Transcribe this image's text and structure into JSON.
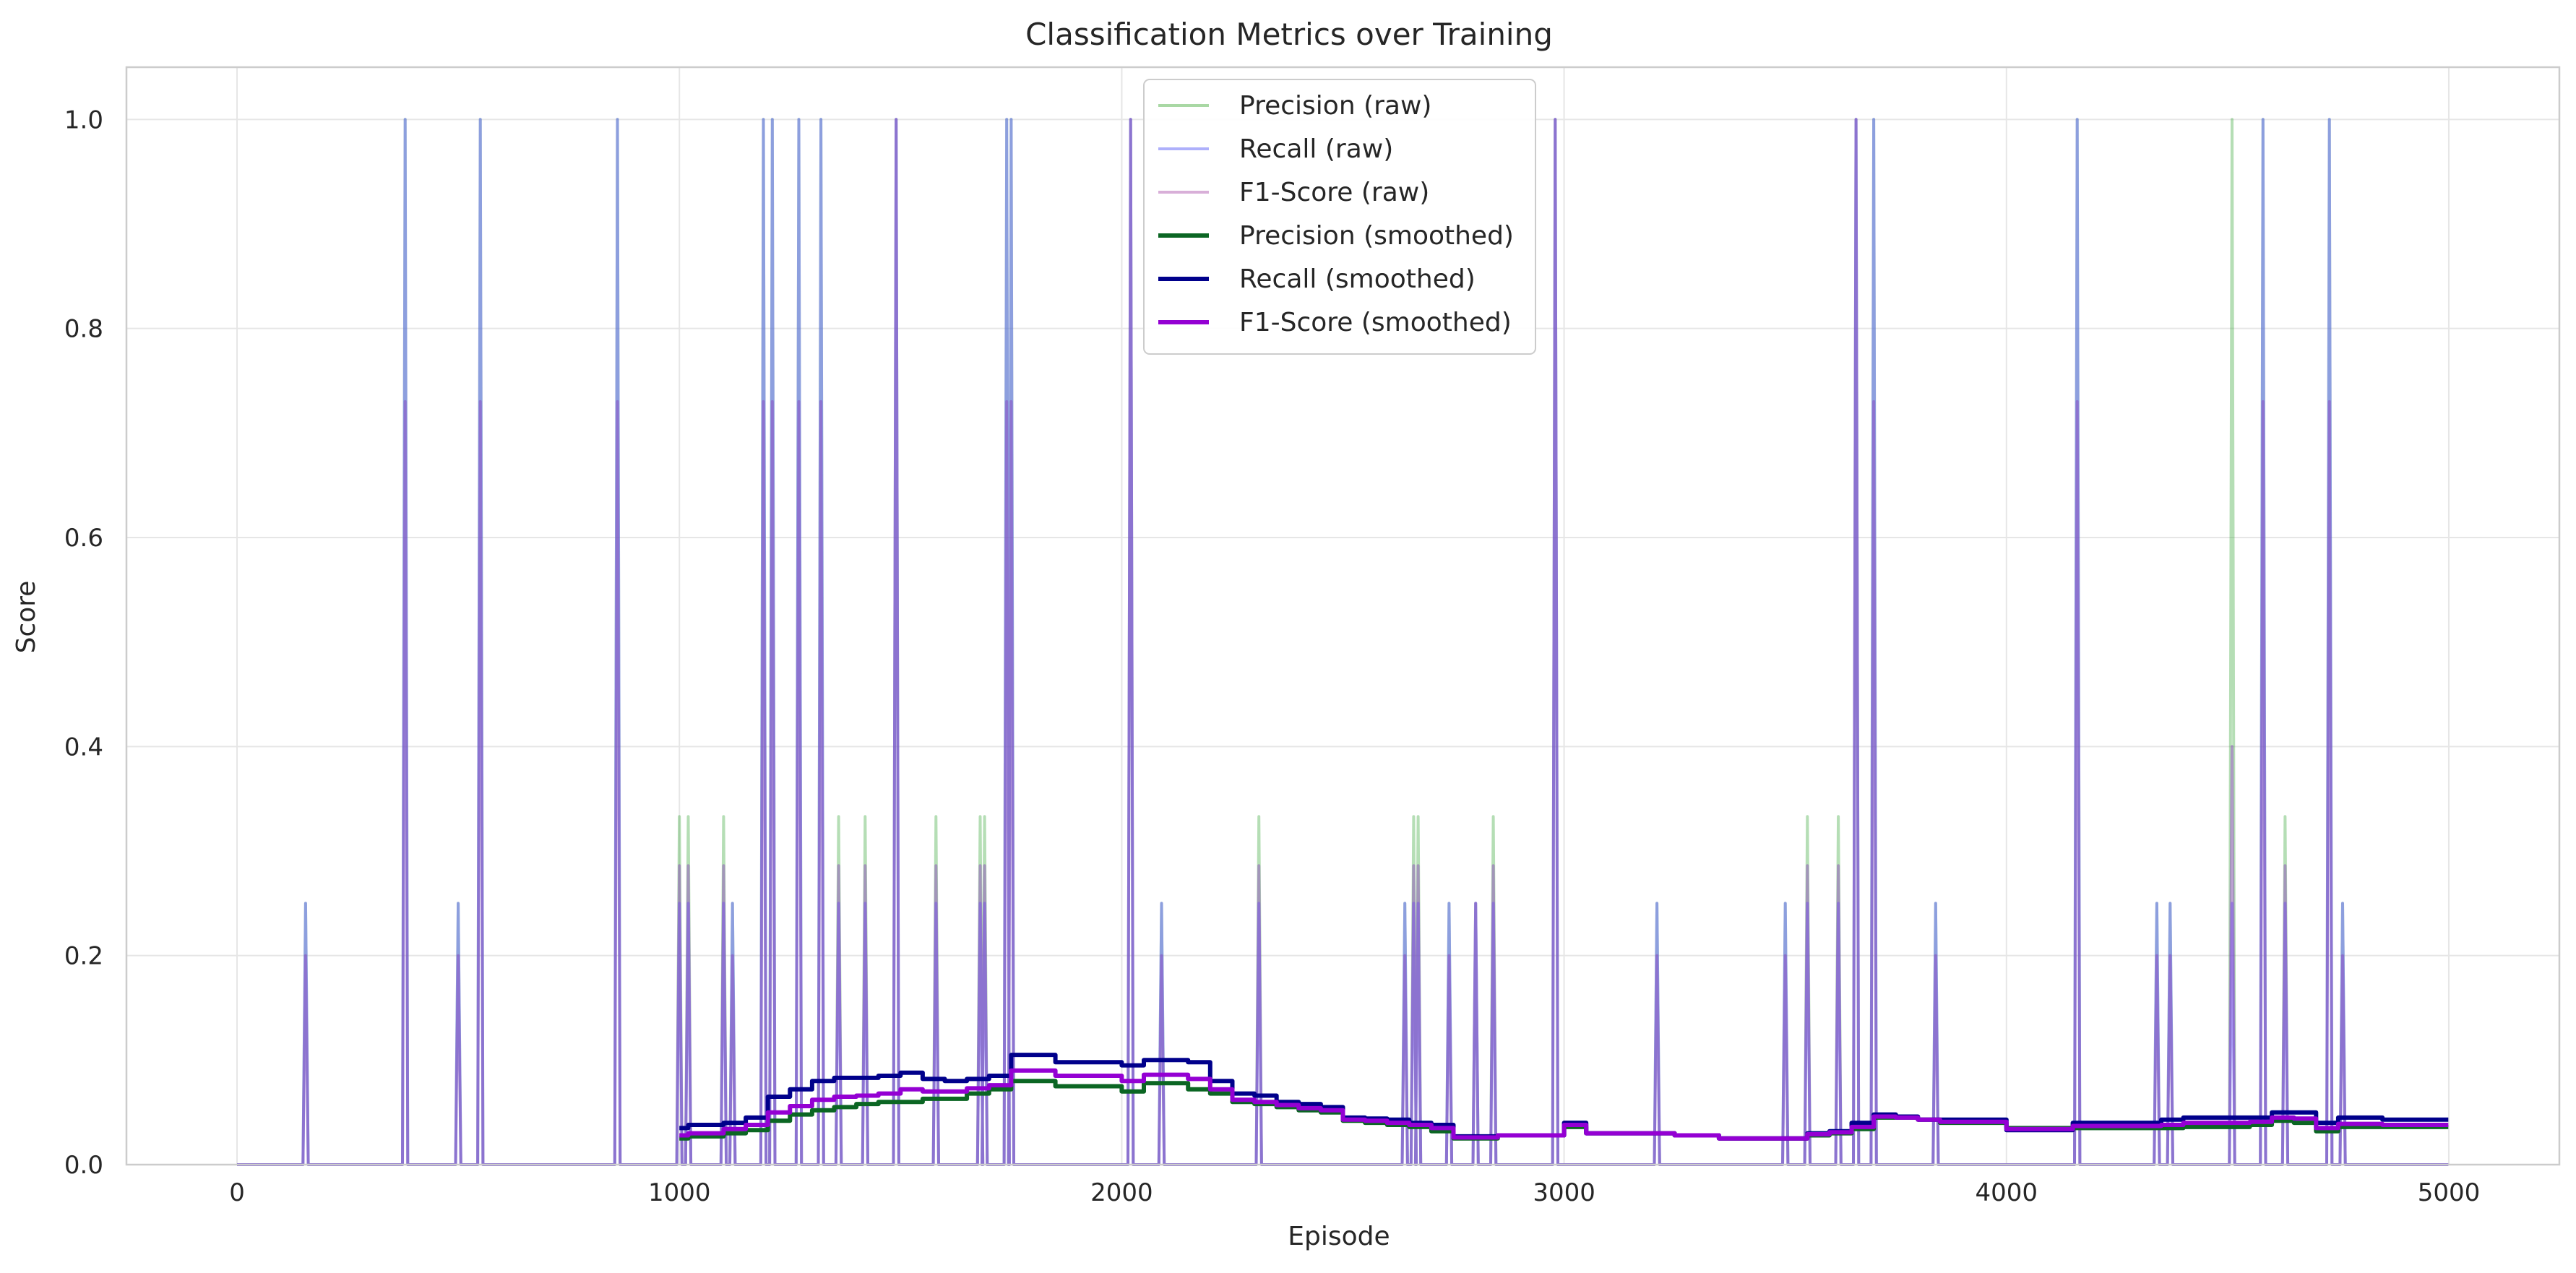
{
  "chart_data": {
    "type": "line",
    "title": "Classification Metrics over Training",
    "xlabel": "Episode",
    "ylabel": "Score",
    "xlim": [
      -250,
      5250
    ],
    "ylim": [
      0.0,
      1.05
    ],
    "xticks": [
      0,
      1000,
      2000,
      3000,
      4000,
      5000
    ],
    "xtick_labels": [
      "0",
      "1000",
      "2000",
      "3000",
      "4000",
      "5000"
    ],
    "yticks": [
      0.0,
      0.2,
      0.4,
      0.6,
      0.8,
      1.0
    ],
    "ytick_labels": [
      "0.0",
      "0.2",
      "0.4",
      "0.6",
      "0.8",
      "1.0"
    ],
    "grid": true,
    "legend_position": "top-center",
    "x_range": [
      0,
      4999
    ],
    "spike_series": [
      {
        "name": "Precision (raw)",
        "color": "#2ca02c",
        "opacity": 0.35,
        "spikes": [
          [
            155,
            0.25
          ],
          [
            380,
            1.0
          ],
          [
            500,
            0.25
          ],
          [
            550,
            1.0
          ],
          [
            860,
            1.0
          ],
          [
            1000,
            0.333
          ],
          [
            1020,
            0.333
          ],
          [
            1100,
            0.333
          ],
          [
            1120,
            0.25
          ],
          [
            1190,
            1.0
          ],
          [
            1210,
            1.0
          ],
          [
            1270,
            1.0
          ],
          [
            1320,
            1.0
          ],
          [
            1360,
            0.333
          ],
          [
            1420,
            0.333
          ],
          [
            1490,
            1.0
          ],
          [
            1580,
            0.333
          ],
          [
            1680,
            0.333
          ],
          [
            1690,
            0.333
          ],
          [
            1740,
            1.0
          ],
          [
            1750,
            1.0
          ],
          [
            2020,
            1.0
          ],
          [
            2090,
            0.25
          ],
          [
            2310,
            0.333
          ],
          [
            2640,
            0.25
          ],
          [
            2660,
            0.333
          ],
          [
            2670,
            0.333
          ],
          [
            2740,
            0.25
          ],
          [
            2800,
            0.25
          ],
          [
            2840,
            0.333
          ],
          [
            2980,
            1.0
          ],
          [
            3210,
            0.25
          ],
          [
            3500,
            0.25
          ],
          [
            3550,
            0.333
          ],
          [
            3620,
            0.333
          ],
          [
            3660,
            1.0
          ],
          [
            3700,
            1.0
          ],
          [
            3840,
            0.25
          ],
          [
            4160,
            1.0
          ],
          [
            4340,
            0.25
          ],
          [
            4370,
            0.25
          ],
          [
            4510,
            1.0
          ],
          [
            4580,
            1.0
          ],
          [
            4630,
            0.333
          ],
          [
            4730,
            1.0
          ],
          [
            4760,
            0.25
          ]
        ]
      },
      {
        "name": "Recall (raw)",
        "color": "#6b6bff",
        "opacity": 0.55,
        "spikes": [
          [
            155,
            0.25
          ],
          [
            380,
            1.0
          ],
          [
            500,
            0.25
          ],
          [
            550,
            1.0
          ],
          [
            860,
            1.0
          ],
          [
            1000,
            0.25
          ],
          [
            1020,
            0.25
          ],
          [
            1100,
            0.25
          ],
          [
            1120,
            0.25
          ],
          [
            1190,
            1.0
          ],
          [
            1210,
            1.0
          ],
          [
            1270,
            1.0
          ],
          [
            1320,
            1.0
          ],
          [
            1360,
            0.25
          ],
          [
            1420,
            0.25
          ],
          [
            1490,
            1.0
          ],
          [
            1580,
            0.25
          ],
          [
            1680,
            0.25
          ],
          [
            1690,
            0.25
          ],
          [
            1740,
            1.0
          ],
          [
            1750,
            1.0
          ],
          [
            2020,
            1.0
          ],
          [
            2090,
            0.25
          ],
          [
            2310,
            0.25
          ],
          [
            2640,
            0.25
          ],
          [
            2660,
            0.25
          ],
          [
            2670,
            0.25
          ],
          [
            2740,
            0.25
          ],
          [
            2800,
            0.25
          ],
          [
            2840,
            0.25
          ],
          [
            2980,
            1.0
          ],
          [
            3210,
            0.25
          ],
          [
            3500,
            0.25
          ],
          [
            3550,
            0.25
          ],
          [
            3620,
            0.25
          ],
          [
            3660,
            1.0
          ],
          [
            3700,
            1.0
          ],
          [
            3840,
            0.25
          ],
          [
            4160,
            1.0
          ],
          [
            4340,
            0.25
          ],
          [
            4370,
            0.25
          ],
          [
            4510,
            0.25
          ],
          [
            4580,
            1.0
          ],
          [
            4630,
            0.25
          ],
          [
            4730,
            1.0
          ],
          [
            4760,
            0.25
          ]
        ]
      },
      {
        "name": "F1-Score (raw)",
        "color": "#8b3fbf",
        "opacity": 0.45,
        "spikes": [
          [
            155,
            0.2
          ],
          [
            380,
            0.73
          ],
          [
            500,
            0.2
          ],
          [
            550,
            0.73
          ],
          [
            860,
            0.73
          ],
          [
            1000,
            0.286
          ],
          [
            1020,
            0.286
          ],
          [
            1100,
            0.286
          ],
          [
            1120,
            0.2
          ],
          [
            1190,
            0.73
          ],
          [
            1210,
            0.73
          ],
          [
            1270,
            0.73
          ],
          [
            1320,
            0.73
          ],
          [
            1360,
            0.286
          ],
          [
            1420,
            0.286
          ],
          [
            1490,
            1.0
          ],
          [
            1580,
            0.286
          ],
          [
            1680,
            0.286
          ],
          [
            1690,
            0.286
          ],
          [
            1740,
            0.73
          ],
          [
            1750,
            0.73
          ],
          [
            2020,
            1.0
          ],
          [
            2090,
            0.2
          ],
          [
            2310,
            0.286
          ],
          [
            2640,
            0.2
          ],
          [
            2660,
            0.286
          ],
          [
            2670,
            0.286
          ],
          [
            2740,
            0.2
          ],
          [
            2800,
            0.25
          ],
          [
            2840,
            0.286
          ],
          [
            2980,
            1.0
          ],
          [
            3210,
            0.2
          ],
          [
            3500,
            0.2
          ],
          [
            3550,
            0.286
          ],
          [
            3620,
            0.286
          ],
          [
            3660,
            1.0
          ],
          [
            3700,
            0.73
          ],
          [
            3840,
            0.2
          ],
          [
            4160,
            0.73
          ],
          [
            4340,
            0.2
          ],
          [
            4370,
            0.2
          ],
          [
            4510,
            0.4
          ],
          [
            4580,
            0.73
          ],
          [
            4630,
            0.286
          ],
          [
            4730,
            0.73
          ],
          [
            4760,
            0.2
          ]
        ]
      }
    ],
    "smoothed_series": [
      {
        "name": "Precision (smoothed)",
        "color": "#0b6623",
        "x": [
          1000,
          1020,
          1100,
          1150,
          1200,
          1250,
          1300,
          1350,
          1400,
          1450,
          1500,
          1550,
          1600,
          1650,
          1700,
          1750,
          1800,
          1850,
          1900,
          1950,
          2000,
          2050,
          2100,
          2150,
          2200,
          2250,
          2300,
          2350,
          2400,
          2450,
          2500,
          2550,
          2600,
          2650,
          2700,
          2750,
          2800,
          2850,
          2900,
          2950,
          3000,
          3050,
          3100,
          3150,
          3200,
          3250,
          3300,
          3350,
          3400,
          3450,
          3500,
          3550,
          3600,
          3650,
          3700,
          3750,
          3800,
          3850,
          3900,
          3950,
          4000,
          4050,
          4100,
          4150,
          4200,
          4250,
          4300,
          4350,
          4400,
          4450,
          4500,
          4550,
          4600,
          4650,
          4700,
          4750,
          4800,
          4850,
          4900,
          4950,
          4999
        ],
        "y": [
          0.025,
          0.027,
          0.03,
          0.033,
          0.042,
          0.048,
          0.052,
          0.055,
          0.058,
          0.06,
          0.06,
          0.063,
          0.063,
          0.068,
          0.072,
          0.08,
          0.08,
          0.075,
          0.075,
          0.075,
          0.07,
          0.078,
          0.078,
          0.072,
          0.068,
          0.06,
          0.058,
          0.055,
          0.052,
          0.05,
          0.042,
          0.04,
          0.038,
          0.036,
          0.032,
          0.025,
          0.025,
          0.028,
          0.028,
          0.028,
          0.036,
          0.03,
          0.03,
          0.03,
          0.03,
          0.028,
          0.028,
          0.025,
          0.025,
          0.025,
          0.025,
          0.028,
          0.03,
          0.034,
          0.045,
          0.045,
          0.043,
          0.04,
          0.04,
          0.04,
          0.035,
          0.035,
          0.035,
          0.035,
          0.035,
          0.035,
          0.035,
          0.035,
          0.036,
          0.036,
          0.036,
          0.038,
          0.042,
          0.04,
          0.032,
          0.036,
          0.036,
          0.036,
          0.036,
          0.036,
          0.036
        ]
      },
      {
        "name": "Recall (smoothed)",
        "color": "#00008b",
        "x": [
          1000,
          1020,
          1100,
          1150,
          1200,
          1250,
          1300,
          1350,
          1400,
          1450,
          1500,
          1550,
          1600,
          1650,
          1700,
          1750,
          1800,
          1850,
          1900,
          1950,
          2000,
          2050,
          2100,
          2150,
          2200,
          2250,
          2300,
          2350,
          2400,
          2450,
          2500,
          2550,
          2600,
          2650,
          2700,
          2750,
          2800,
          2850,
          2900,
          2950,
          3000,
          3050,
          3100,
          3150,
          3200,
          3250,
          3300,
          3350,
          3400,
          3450,
          3500,
          3550,
          3600,
          3650,
          3700,
          3750,
          3800,
          3850,
          3900,
          3950,
          4000,
          4050,
          4100,
          4150,
          4200,
          4250,
          4300,
          4350,
          4400,
          4450,
          4500,
          4550,
          4600,
          4650,
          4700,
          4750,
          4800,
          4850,
          4900,
          4950,
          4999
        ],
        "y": [
          0.035,
          0.038,
          0.04,
          0.045,
          0.065,
          0.072,
          0.08,
          0.083,
          0.083,
          0.085,
          0.088,
          0.082,
          0.08,
          0.082,
          0.085,
          0.105,
          0.105,
          0.098,
          0.098,
          0.098,
          0.095,
          0.1,
          0.1,
          0.098,
          0.08,
          0.068,
          0.066,
          0.06,
          0.058,
          0.055,
          0.045,
          0.044,
          0.043,
          0.04,
          0.038,
          0.027,
          0.027,
          0.028,
          0.028,
          0.028,
          0.04,
          0.03,
          0.03,
          0.03,
          0.03,
          0.028,
          0.028,
          0.025,
          0.025,
          0.025,
          0.025,
          0.03,
          0.032,
          0.04,
          0.048,
          0.046,
          0.043,
          0.043,
          0.043,
          0.043,
          0.033,
          0.033,
          0.033,
          0.04,
          0.04,
          0.04,
          0.04,
          0.043,
          0.045,
          0.045,
          0.045,
          0.045,
          0.05,
          0.05,
          0.04,
          0.045,
          0.045,
          0.043,
          0.043,
          0.043,
          0.043
        ]
      },
      {
        "name": "F1-Score (smoothed)",
        "color": "#9400d3",
        "x": [
          1000,
          1020,
          1100,
          1150,
          1200,
          1250,
          1300,
          1350,
          1400,
          1450,
          1500,
          1550,
          1600,
          1650,
          1700,
          1750,
          1800,
          1850,
          1900,
          1950,
          2000,
          2050,
          2100,
          2150,
          2200,
          2250,
          2300,
          2350,
          2400,
          2450,
          2500,
          2550,
          2600,
          2650,
          2700,
          2750,
          2800,
          2850,
          2900,
          2950,
          3000,
          3050,
          3100,
          3150,
          3200,
          3250,
          3300,
          3350,
          3400,
          3450,
          3500,
          3550,
          3600,
          3650,
          3700,
          3750,
          3800,
          3850,
          3900,
          3950,
          4000,
          4050,
          4100,
          4150,
          4200,
          4250,
          4300,
          4350,
          4400,
          4450,
          4500,
          4550,
          4600,
          4650,
          4700,
          4750,
          4800,
          4850,
          4900,
          4950,
          4999
        ],
        "y": [
          0.028,
          0.03,
          0.034,
          0.038,
          0.05,
          0.056,
          0.062,
          0.065,
          0.066,
          0.068,
          0.072,
          0.07,
          0.07,
          0.073,
          0.076,
          0.09,
          0.09,
          0.085,
          0.085,
          0.085,
          0.08,
          0.086,
          0.086,
          0.082,
          0.072,
          0.062,
          0.06,
          0.057,
          0.054,
          0.052,
          0.043,
          0.042,
          0.04,
          0.038,
          0.035,
          0.026,
          0.026,
          0.028,
          0.028,
          0.028,
          0.038,
          0.03,
          0.03,
          0.03,
          0.03,
          0.028,
          0.028,
          0.025,
          0.025,
          0.025,
          0.025,
          0.029,
          0.031,
          0.036,
          0.046,
          0.045,
          0.043,
          0.041,
          0.041,
          0.041,
          0.034,
          0.034,
          0.034,
          0.037,
          0.037,
          0.037,
          0.037,
          0.038,
          0.04,
          0.04,
          0.04,
          0.041,
          0.045,
          0.044,
          0.035,
          0.039,
          0.039,
          0.038,
          0.038,
          0.038,
          0.038
        ]
      }
    ],
    "legend": [
      {
        "label": "Precision (raw)",
        "color": "#a9d8a4",
        "width": 4
      },
      {
        "label": "Recall (raw)",
        "color": "#aeb0fb",
        "width": 4
      },
      {
        "label": "F1-Score (raw)",
        "color": "#d8afd8",
        "width": 4
      },
      {
        "label": "Precision (smoothed)",
        "color": "#0b6623",
        "width": 6
      },
      {
        "label": "Recall (smoothed)",
        "color": "#00008b",
        "width": 6
      },
      {
        "label": "F1-Score (smoothed)",
        "color": "#9400d3",
        "width": 6
      }
    ]
  }
}
